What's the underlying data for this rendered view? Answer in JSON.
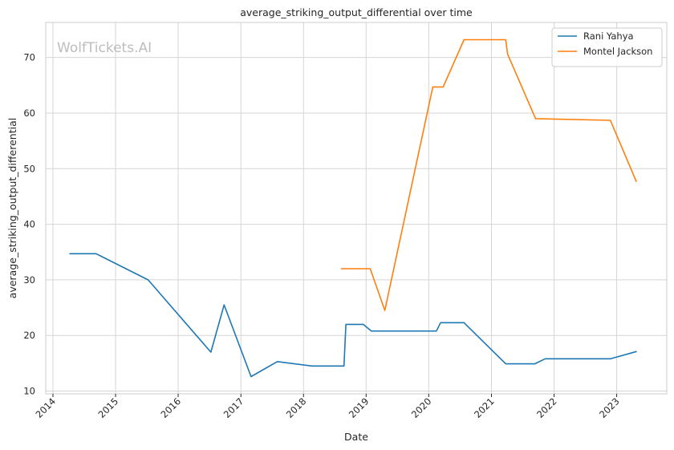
{
  "chart_data": {
    "type": "line",
    "title": "average_striking_output_differential over time",
    "xlabel": "Date",
    "ylabel": "average_striking_output_differential",
    "watermark": "WolfTickets.AI",
    "x_ticks": [
      "2014",
      "2015",
      "2016",
      "2017",
      "2018",
      "2019",
      "2020",
      "2021",
      "2022",
      "2023"
    ],
    "y_ticks": [
      10,
      20,
      30,
      40,
      50,
      60,
      70
    ],
    "xlim": [
      "2013-11-20",
      "2023-10-20"
    ],
    "ylim": [
      9.5,
      76.3
    ],
    "grid": true,
    "legend_position": "top-right",
    "series": [
      {
        "name": "Rani Yahya",
        "color": "#1f77b4",
        "points": [
          [
            "2014-04-10",
            34.7
          ],
          [
            "2014-09-10",
            34.7
          ],
          [
            "2015-07-10",
            30.0
          ],
          [
            "2016-07-10",
            17.0
          ],
          [
            "2016-09-25",
            25.5
          ],
          [
            "2017-03-01",
            12.6
          ],
          [
            "2017-08-01",
            15.3
          ],
          [
            "2018-02-20",
            14.5
          ],
          [
            "2018-08-25",
            14.5
          ],
          [
            "2018-09-05",
            22.0
          ],
          [
            "2018-12-15",
            22.0
          ],
          [
            "2019-02-01",
            20.8
          ],
          [
            "2019-11-01",
            20.8
          ],
          [
            "2020-02-15",
            20.8
          ],
          [
            "2020-03-10",
            22.3
          ],
          [
            "2020-07-25",
            22.3
          ],
          [
            "2021-03-25",
            14.9
          ],
          [
            "2021-09-10",
            14.9
          ],
          [
            "2021-11-10",
            15.8
          ],
          [
            "2022-11-25",
            15.8
          ],
          [
            "2023-04-25",
            17.1
          ]
        ]
      },
      {
        "name": "Montel Jackson",
        "color": "#ff7f0e",
        "points": [
          [
            "2018-08-10",
            32.0
          ],
          [
            "2019-01-25",
            32.0
          ],
          [
            "2019-04-20",
            24.5
          ],
          [
            "2020-01-25",
            64.7
          ],
          [
            "2020-03-25",
            64.7
          ],
          [
            "2020-07-25",
            73.2
          ],
          [
            "2021-03-25",
            73.2
          ],
          [
            "2021-04-05",
            70.6
          ],
          [
            "2021-09-15",
            59.0
          ],
          [
            "2022-11-25",
            58.7
          ],
          [
            "2023-04-25",
            47.7
          ]
        ]
      }
    ]
  }
}
